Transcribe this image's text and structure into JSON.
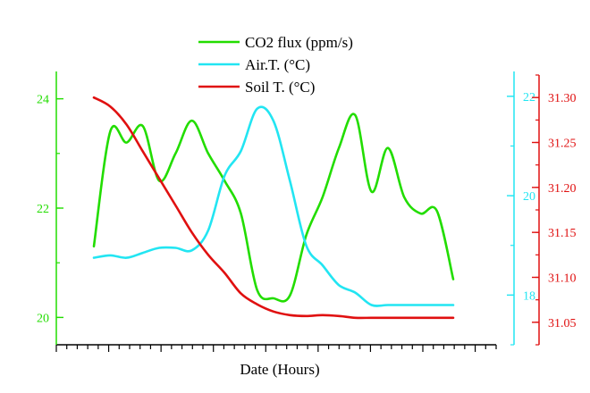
{
  "chart_data": {
    "type": "line",
    "xlabel": "Date (Hours)",
    "legend_position": "top-center",
    "grid": false,
    "x_minor_ticks": 42,
    "axes": {
      "left": {
        "name": "co2-axis",
        "color": "#22dd00",
        "ylim": [
          19.5,
          24.5
        ],
        "ticks": [
          "20",
          "22",
          "24"
        ]
      },
      "mid": {
        "name": "air-axis",
        "color": "#22e5f2",
        "ylim": [
          17.0,
          22.5
        ],
        "ticks": [
          "18",
          "20",
          "22"
        ]
      },
      "right": {
        "name": "soil-axis",
        "color": "#e01010",
        "ylim": [
          31.025,
          31.325
        ],
        "ticks": [
          "31.05",
          "31.10",
          "31.15",
          "31.20",
          "31.25",
          "31.30"
        ]
      }
    },
    "series": [
      {
        "name": "CO2 flux (ppm/s)",
        "axis": "left",
        "color": "#22dd00",
        "x": [
          0,
          1,
          2,
          3,
          4,
          5,
          6,
          7,
          8,
          9,
          10,
          11,
          12,
          13,
          14,
          15,
          16,
          17,
          18,
          19,
          20,
          21,
          22,
          23,
          24,
          25
        ],
        "y": [
          21.3,
          23.4,
          23.2,
          23.5,
          22.5,
          23.0,
          23.6,
          23.0,
          22.5,
          21.9,
          20.5,
          20.35,
          20.4,
          21.5,
          22.2,
          23.1,
          23.7,
          22.3,
          23.1,
          22.2,
          21.9,
          21.95,
          20.7,
          20.7,
          20.7,
          20.7
        ]
      },
      {
        "name": "Air.T. (°C)",
        "axis": "mid",
        "color": "#22e5f2",
        "x": [
          0,
          1,
          2,
          3,
          4,
          5,
          6,
          7,
          8,
          9,
          10,
          11,
          12,
          13,
          14,
          15,
          16,
          17,
          18,
          19,
          20,
          21,
          22
        ],
        "y": [
          18.75,
          18.8,
          18.75,
          18.85,
          18.95,
          18.95,
          18.9,
          19.3,
          20.4,
          20.9,
          21.75,
          21.5,
          20.3,
          19.0,
          18.6,
          18.2,
          18.05,
          17.8,
          17.8,
          17.8,
          17.8,
          17.8,
          17.8
        ]
      },
      {
        "name": "Soil T. (°C)",
        "axis": "right",
        "color": "#e01010",
        "x": [
          0,
          1,
          2,
          3,
          4,
          5,
          6,
          7,
          8,
          9,
          10,
          11,
          12,
          13,
          14,
          15,
          16,
          17,
          18,
          19,
          20,
          21,
          22
        ],
        "y": [
          31.3,
          31.29,
          31.27,
          31.24,
          31.21,
          31.18,
          31.15,
          31.125,
          31.105,
          31.082,
          31.07,
          31.062,
          31.058,
          31.057,
          31.058,
          31.057,
          31.055,
          31.055,
          31.055,
          31.055,
          31.055,
          31.055,
          31.055
        ]
      }
    ]
  }
}
